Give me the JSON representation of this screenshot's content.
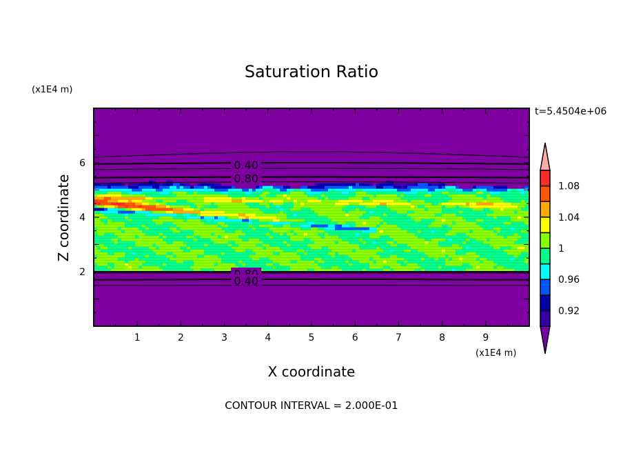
{
  "chart_data": {
    "type": "heatmap",
    "title": "Saturation Ratio",
    "xlabel": "X coordinate",
    "ylabel": "Z coordinate",
    "x_unit": "(x1E4 m)",
    "y_unit": "(x1E4 m)",
    "time_label": "t=5.4504e+06",
    "footer": "CONTOUR INTERVAL = 2.000E-01",
    "xlim": [
      0,
      10
    ],
    "ylim": [
      0,
      8
    ],
    "x_ticks": [
      "1",
      "2",
      "3",
      "4",
      "5",
      "6",
      "7",
      "8",
      "9"
    ],
    "y_ticks": [
      "2",
      "4",
      "6"
    ],
    "background_color": "#7f00a0",
    "colorbar": {
      "levels": [
        0.9,
        0.92,
        0.94,
        0.96,
        0.98,
        1.0,
        1.02,
        1.04,
        1.06,
        1.08,
        1.1
      ],
      "tick_labels": [
        "0.92",
        "0.96",
        "1",
        "1.04",
        "1.08"
      ],
      "tick_values": [
        0.92,
        0.96,
        1.0,
        1.04,
        1.08
      ],
      "colors": [
        "#3300aa",
        "#0000aa",
        "#0055ff",
        "#00ffff",
        "#00ff88",
        "#88ff00",
        "#ffff00",
        "#ffaa00",
        "#ff5500",
        "#ff2a2a"
      ],
      "under_color": "#7700aa",
      "over_color": "#ffaaaa",
      "extend": "both"
    },
    "contour_labels": [
      {
        "text": "0.40",
        "x": 3.5,
        "z": 5.95
      },
      {
        "text": "0.80",
        "x": 3.5,
        "z": 5.45
      },
      {
        "text": "0.80",
        "x": 3.5,
        "z": 1.95
      },
      {
        "text": "0.40",
        "x": 3.5,
        "z": 1.7
      }
    ]
  }
}
